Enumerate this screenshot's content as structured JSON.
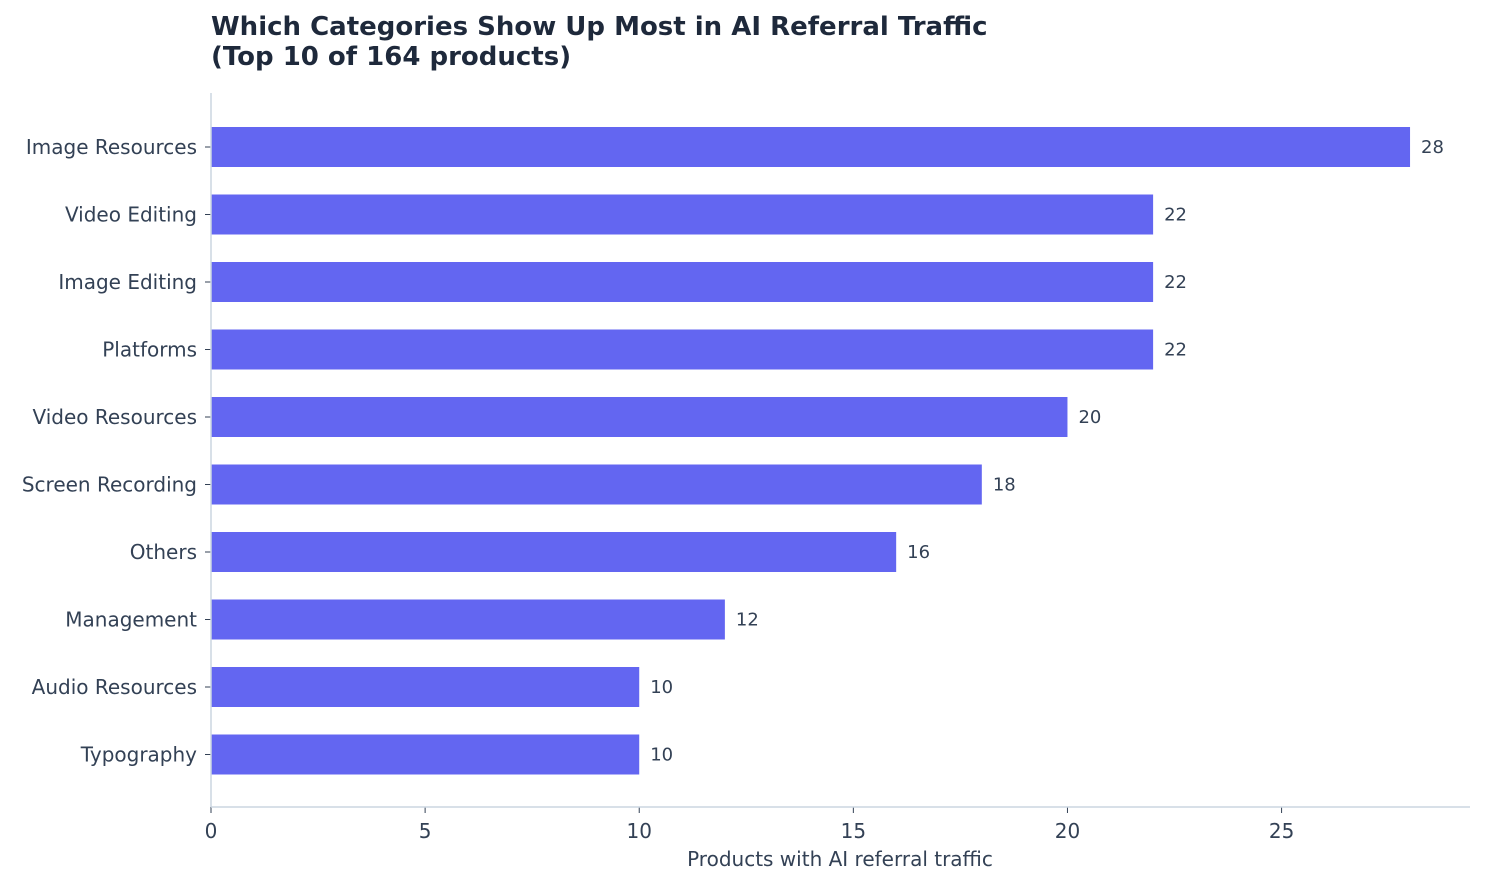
{
  "chart_data": {
    "type": "bar",
    "orientation": "horizontal",
    "title_lines": [
      "Which Categories Show Up Most in AI Referral Traffic",
      "(Top 10 of 164 products)"
    ],
    "categories": [
      "Image Resources",
      "Video Editing",
      "Image Editing",
      "Platforms",
      "Video Resources",
      "Screen Recording",
      "Others",
      "Management",
      "Audio Resources",
      "Typography"
    ],
    "values": [
      28,
      22,
      22,
      22,
      20,
      18,
      16,
      12,
      10,
      10
    ],
    "xlabel": "Products with AI referral traffic",
    "ylabel": "",
    "xlim": [
      0,
      29.4
    ],
    "xticks": [
      0,
      5,
      10,
      15,
      20,
      25
    ],
    "grid": false,
    "data_labels": true,
    "colors": {
      "bar": "#6366f1",
      "text": "#334155",
      "title": "#1e293b",
      "axis": "#cbd5e1"
    }
  }
}
